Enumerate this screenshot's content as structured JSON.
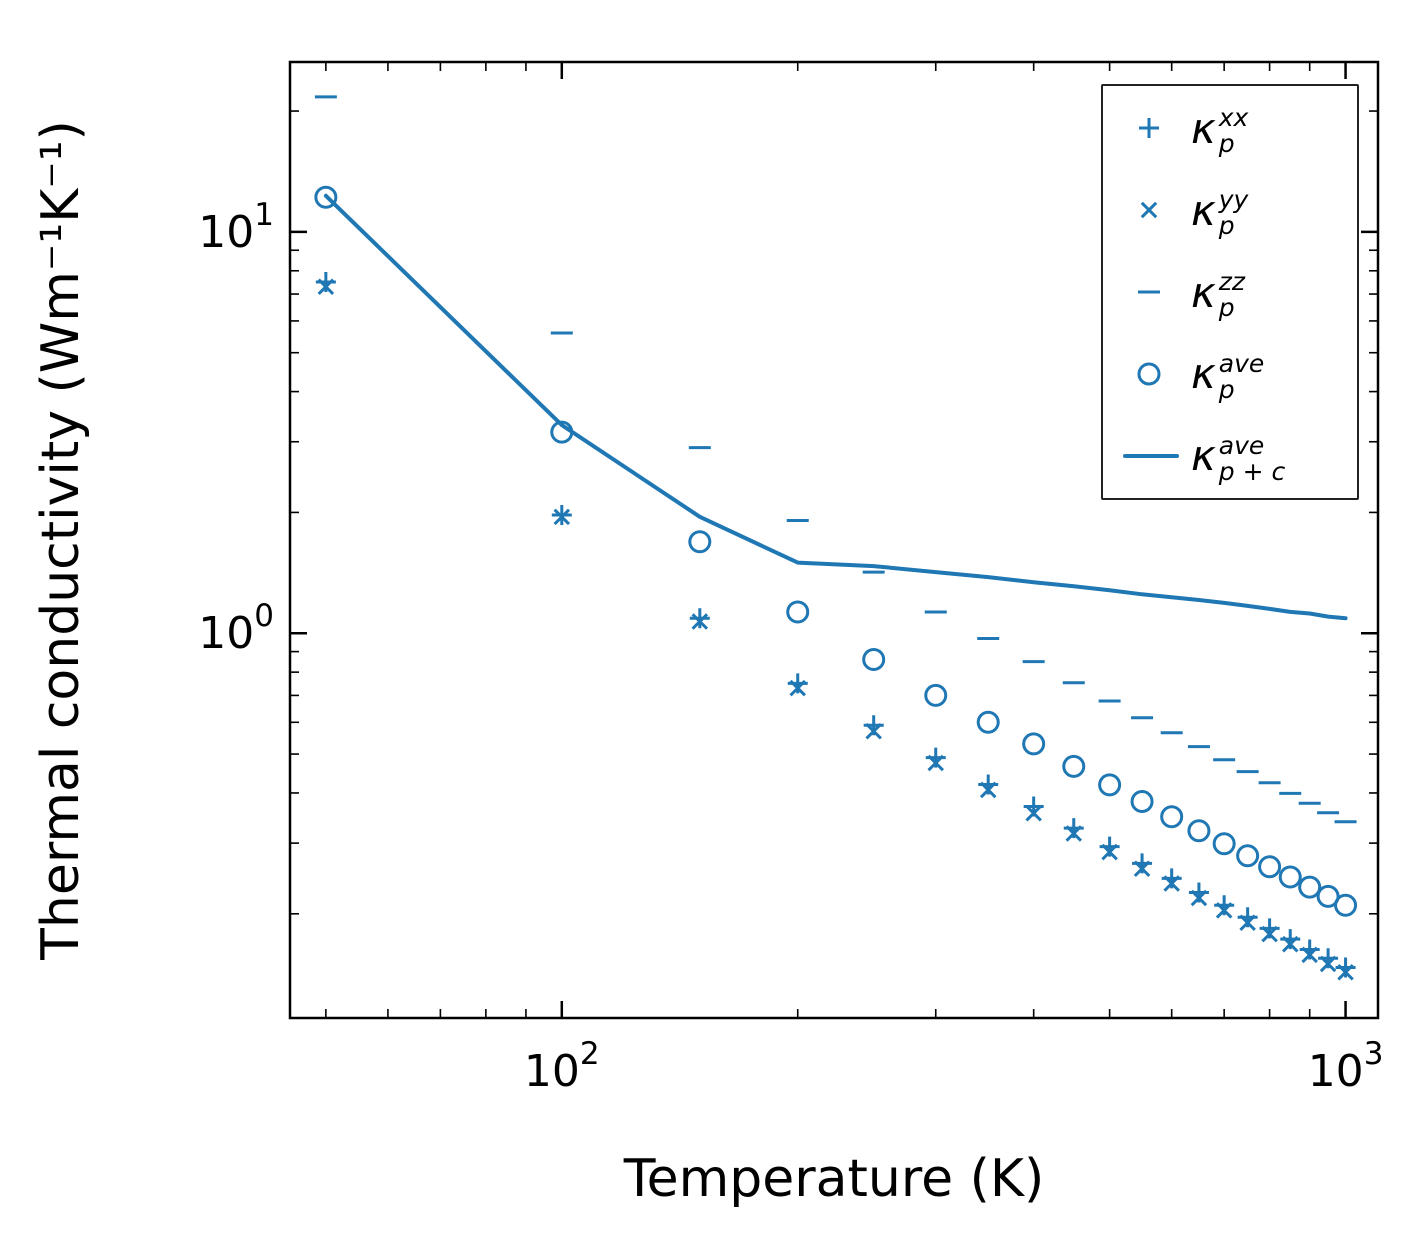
{
  "figure": {
    "xlabel": "Temperature (K)",
    "ylabel": "Thermal conductivity (Wm⁻¹K⁻¹)",
    "accent_color": "#1f77b4",
    "background": "#ffffff"
  },
  "axis_ticks": {
    "x": [
      {
        "value": 100,
        "base": "10",
        "exp": "2"
      },
      {
        "value": 1000,
        "base": "10",
        "exp": "3"
      }
    ],
    "y": [
      {
        "value": 1,
        "base": "10",
        "exp": "0"
      },
      {
        "value": 10,
        "base": "10",
        "exp": "1"
      }
    ]
  },
  "legend": {
    "items": [
      {
        "id": "kappa-p-xx",
        "marker": "plus",
        "kappa": "κ",
        "sup": "xx",
        "sub": "p"
      },
      {
        "id": "kappa-p-yy",
        "marker": "x",
        "kappa": "κ",
        "sup": "yy",
        "sub": "p"
      },
      {
        "id": "kappa-p-zz",
        "marker": "dash",
        "kappa": "κ",
        "sup": "zz",
        "sub": "p"
      },
      {
        "id": "kappa-p-ave",
        "marker": "circle",
        "kappa": "κ",
        "sup": "ave",
        "sub": "p"
      },
      {
        "id": "kappa-p-plus-c-ave",
        "marker": "line",
        "kappa": "κ",
        "sup": "ave",
        "sub": "p + c"
      }
    ]
  },
  "chart_data": {
    "type": "scatter",
    "title": "",
    "xlabel": "Temperature (K)",
    "ylabel": "Thermal conductivity (Wm⁻¹K⁻¹)",
    "x_scale": "log",
    "y_scale": "log",
    "xlim": [
      45,
      1100
    ],
    "ylim": [
      0.11,
      26.5
    ],
    "grid": false,
    "legend_position": "upper right",
    "x": [
      50,
      100,
      150,
      200,
      250,
      300,
      350,
      400,
      450,
      500,
      550,
      600,
      650,
      700,
      750,
      800,
      850,
      900,
      950,
      1000
    ],
    "series": [
      {
        "id": "kappa-p-xx",
        "name": "κ_p^xx",
        "marker": "plus",
        "values": [
          7.5,
          1.97,
          1.09,
          0.75,
          0.59,
          0.49,
          0.42,
          0.37,
          0.327,
          0.294,
          0.267,
          0.245,
          0.226,
          0.21,
          0.196,
          0.184,
          0.173,
          0.163,
          0.155,
          0.147
        ]
      },
      {
        "id": "kappa-p-yy",
        "name": "κ_p^yy",
        "marker": "x",
        "values": [
          7.3,
          1.95,
          1.07,
          0.73,
          0.57,
          0.475,
          0.407,
          0.356,
          0.317,
          0.285,
          0.259,
          0.238,
          0.219,
          0.204,
          0.19,
          0.178,
          0.168,
          0.158,
          0.15,
          0.143
        ]
      },
      {
        "id": "kappa-p-zz",
        "name": "κ_p^zz",
        "marker": "dash",
        "values": [
          21.7,
          5.6,
          2.9,
          1.91,
          1.42,
          1.13,
          0.97,
          0.85,
          0.753,
          0.678,
          0.616,
          0.565,
          0.522,
          0.484,
          0.452,
          0.424,
          0.399,
          0.377,
          0.357,
          0.339
        ]
      },
      {
        "id": "kappa-p-ave",
        "name": "κ_p^ave",
        "marker": "circle",
        "values": [
          12.2,
          3.17,
          1.69,
          1.13,
          0.86,
          0.7,
          0.6,
          0.53,
          0.466,
          0.419,
          0.381,
          0.349,
          0.322,
          0.299,
          0.279,
          0.262,
          0.247,
          0.233,
          0.221,
          0.21
        ]
      },
      {
        "id": "kappa-p-plus-c-ave",
        "name": "κ_p+c^ave",
        "marker": "line",
        "values": [
          12.3,
          3.3,
          1.95,
          1.5,
          1.47,
          1.42,
          1.38,
          1.34,
          1.31,
          1.28,
          1.25,
          1.23,
          1.21,
          1.19,
          1.17,
          1.15,
          1.13,
          1.12,
          1.1,
          1.09
        ]
      }
    ]
  }
}
